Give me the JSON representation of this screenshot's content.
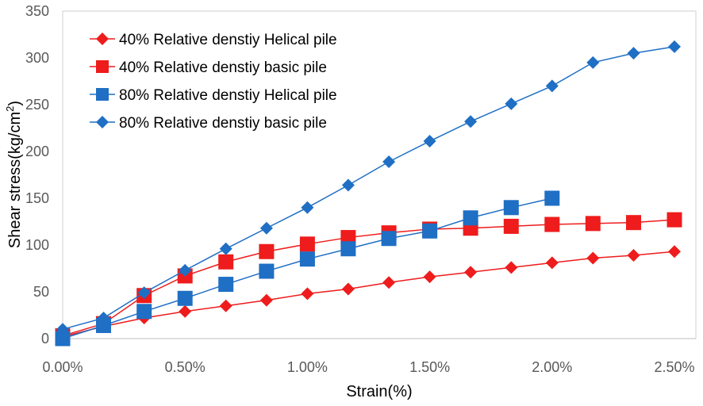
{
  "chart_data": {
    "type": "line",
    "title": "",
    "xlabel": "Strain(%)",
    "ylabel_main": "Shear stress(kg/cm",
    "ylabel_sup": "2",
    "ylabel_close": ")",
    "xlim": [
      0,
      2.5
    ],
    "ylim": [
      0,
      350
    ],
    "grid": false,
    "legend_position": "top-left",
    "x_ticks": [
      0,
      0.5,
      1.0,
      1.5,
      2.0,
      2.5
    ],
    "x_tick_labels": [
      "0.00%",
      "0.50%",
      "1.00%",
      "1.50%",
      "2.00%",
      "2.50%"
    ],
    "y_ticks": [
      0,
      50,
      100,
      150,
      200,
      250,
      300,
      350
    ],
    "y_tick_labels": [
      "0",
      "50",
      "100",
      "150",
      "200",
      "250",
      "300",
      "350"
    ],
    "series": [
      {
        "name": "40% Relative denstiy Helical pile",
        "color": "#ee1c1c",
        "marker": "diamond",
        "x": [
          0,
          0.167,
          0.333,
          0.5,
          0.667,
          0.833,
          1.0,
          1.167,
          1.333,
          1.5,
          1.667,
          1.833,
          2.0,
          2.167,
          2.333,
          2.5
        ],
        "y": [
          2,
          13,
          22,
          29,
          35,
          41,
          48,
          53,
          60,
          66,
          71,
          76,
          81,
          86,
          89,
          93
        ]
      },
      {
        "name": "40% Relative denstiy basic pile",
        "color": "#ee1c1c",
        "marker": "square",
        "x": [
          0,
          0.167,
          0.333,
          0.5,
          0.667,
          0.833,
          1.0,
          1.167,
          1.333,
          1.5,
          1.667,
          1.833,
          2.0,
          2.167,
          2.333,
          2.5
        ],
        "y": [
          3,
          16,
          46,
          67,
          82,
          93,
          101,
          108,
          113,
          117,
          118,
          120,
          122,
          123,
          124,
          127
        ]
      },
      {
        "name": "80% Relative denstiy Helical pile",
        "color": "#1f6fc4",
        "marker": "square",
        "x": [
          0,
          0.167,
          0.333,
          0.5,
          0.667,
          0.833,
          1.0,
          1.167,
          1.333,
          1.5,
          1.667,
          1.833,
          2.0
        ],
        "y": [
          0,
          14,
          29,
          43,
          58,
          72,
          85,
          96,
          107,
          115,
          129,
          140,
          150
        ]
      },
      {
        "name": "80% Relative denstiy basic pile",
        "color": "#1f6fc4",
        "marker": "diamond",
        "x": [
          0,
          0.167,
          0.333,
          0.5,
          0.667,
          0.833,
          1.0,
          1.167,
          1.333,
          1.5,
          1.667,
          1.833,
          2.0,
          2.167,
          2.333,
          2.5
        ],
        "y": [
          10,
          22,
          49,
          73,
          96,
          118,
          140,
          164,
          189,
          211,
          232,
          251,
          270,
          295,
          305,
          312
        ]
      }
    ]
  }
}
